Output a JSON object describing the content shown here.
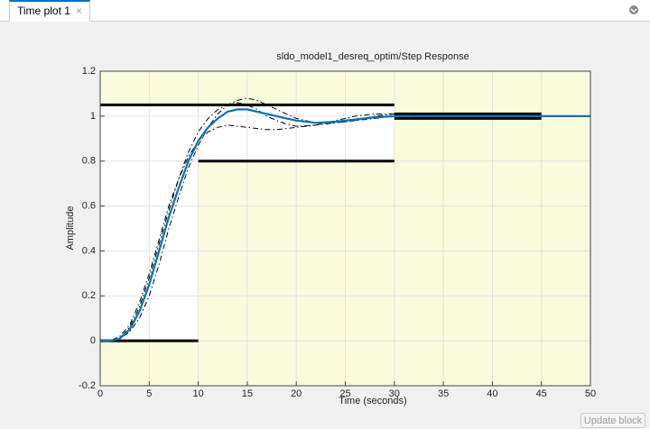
{
  "tab": {
    "title": "Time plot 1"
  },
  "button": {
    "label": "Update block"
  },
  "chart_data": {
    "type": "line",
    "title": "sldo_model1_desreq_optim/Step  Response",
    "x_label": "Time (seconds)",
    "y_label": "Amplitude",
    "x": [
      0,
      1,
      2,
      3,
      4,
      5,
      6,
      7,
      8,
      9,
      10,
      11,
      12,
      13,
      14,
      15,
      16,
      17,
      18,
      19,
      20,
      22,
      24,
      26,
      28,
      30,
      35,
      40,
      45,
      50
    ],
    "series": [
      {
        "color": "#000000",
        "style": "dashed",
        "values": [
          0,
          0,
          0.01,
          0.04,
          0.1,
          0.2,
          0.34,
          0.5,
          0.64,
          0.77,
          0.87,
          0.95,
          1.01,
          1.05,
          1.07,
          1.08,
          1.07,
          1.05,
          1.03,
          1.01,
          0.99,
          0.97,
          0.97,
          0.98,
          1.0,
          1.01,
          1.0,
          null,
          null,
          null
        ]
      },
      {
        "color": "#000000",
        "style": "dashed",
        "values": [
          0,
          0,
          0.02,
          0.07,
          0.17,
          0.3,
          0.45,
          0.6,
          0.72,
          0.82,
          0.89,
          0.93,
          0.95,
          0.96,
          0.955,
          0.95,
          0.945,
          0.94,
          0.94,
          0.945,
          0.95,
          0.96,
          0.97,
          0.98,
          0.99,
          1.0,
          1.01,
          null,
          null,
          null
        ]
      },
      {
        "color": "#000000",
        "style": "dashed",
        "values": [
          0,
          0,
          0.01,
          0.06,
          0.15,
          0.28,
          0.43,
          0.58,
          0.72,
          0.84,
          0.93,
          0.99,
          1.03,
          1.05,
          1.06,
          1.05,
          1.03,
          1.0,
          0.98,
          0.965,
          0.955,
          0.96,
          0.98,
          1.0,
          1.01,
          1.01,
          1.0,
          null,
          null,
          null
        ]
      },
      {
        "color": "#0072bd",
        "style": "solid",
        "values": [
          0,
          0,
          0.01,
          0.05,
          0.13,
          0.25,
          0.4,
          0.55,
          0.68,
          0.8,
          0.89,
          0.95,
          0.99,
          1.02,
          1.03,
          1.03,
          1.02,
          1.01,
          1.0,
          0.99,
          0.98,
          0.97,
          0.975,
          0.985,
          0.995,
          1.0,
          1.0,
          1.0,
          1.0,
          1.0
        ]
      }
    ],
    "bounds": [
      {
        "x": [
          0,
          10
        ],
        "upper": 1.05,
        "lower": 0
      },
      {
        "x": [
          10,
          30
        ],
        "upper": 1.05,
        "lower": 0.8
      },
      {
        "x": [
          30,
          45
        ],
        "upper": 1.01,
        "lower": 0.99
      }
    ],
    "region_color": "#fafadc",
    "xlim": [
      0,
      50
    ],
    "xticks": [
      0,
      5,
      10,
      15,
      20,
      25,
      30,
      35,
      40,
      45,
      50
    ],
    "ylim": [
      -0.2,
      1.2
    ],
    "yticks": [
      -0.2,
      0,
      0.2,
      0.4,
      0.6,
      0.8,
      1,
      1.2
    ],
    "grid": true
  }
}
